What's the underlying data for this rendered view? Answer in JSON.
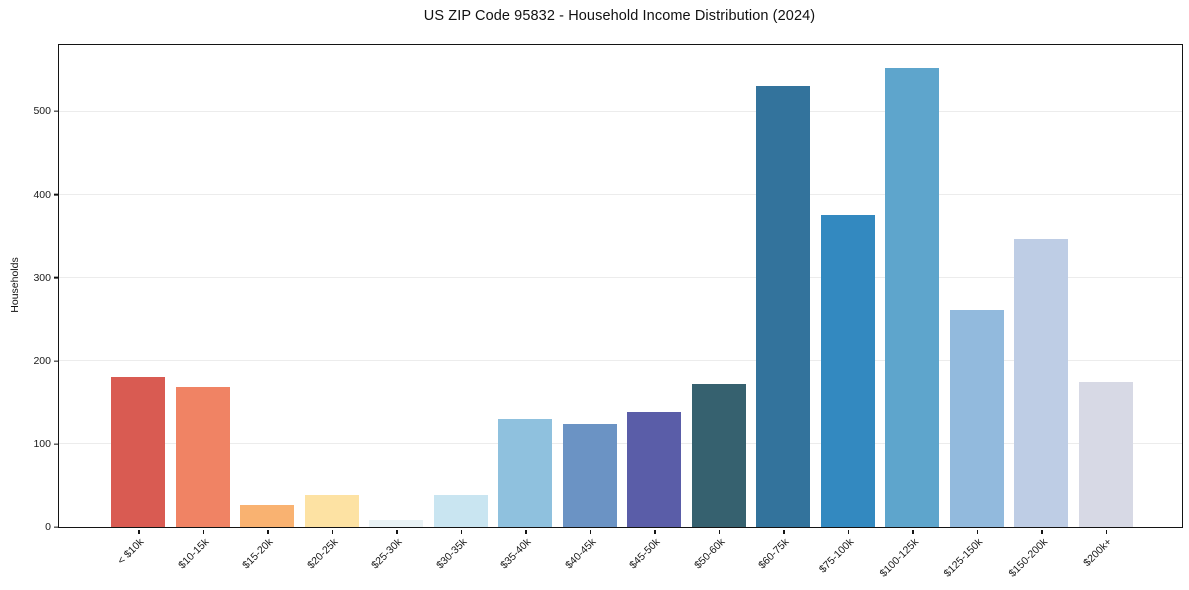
{
  "chart_data": {
    "type": "bar",
    "title": "US ZIP Code 95832 - Household Income Distribution (2024)",
    "xlabel": "",
    "ylabel": "Households",
    "categories": [
      "< $10k",
      "$10-15k",
      "$15-20k",
      "$20-25k",
      "$25-30k",
      "$30-35k",
      "$35-40k",
      "$40-45k",
      "$45-50k",
      "$50-60k",
      "$60-75k",
      "$75-100k",
      "$100-125k",
      "$125-150k",
      "$150-200k",
      "$200k+"
    ],
    "values": [
      181,
      169,
      26,
      38,
      8,
      39,
      130,
      124,
      139,
      172,
      531,
      376,
      552,
      261,
      346,
      175
    ],
    "bar_colors": [
      "#d95b52",
      "#f08364",
      "#f9b271",
      "#fde2a3",
      "#e9f2f5",
      "#c9e5f1",
      "#8fc1de",
      "#6b93c4",
      "#5a5da8",
      "#36616f",
      "#33739c",
      "#3389c0",
      "#5ea5cc",
      "#92badd",
      "#becde5",
      "#d7d9e5"
    ],
    "yticks": [
      0,
      100,
      200,
      300,
      400,
      500
    ],
    "ylim": [
      0,
      580
    ],
    "grid": "horizontal",
    "legend": "none",
    "background": "#ffffff",
    "spine_color": "#141414",
    "gridline_color": "#ececec"
  }
}
